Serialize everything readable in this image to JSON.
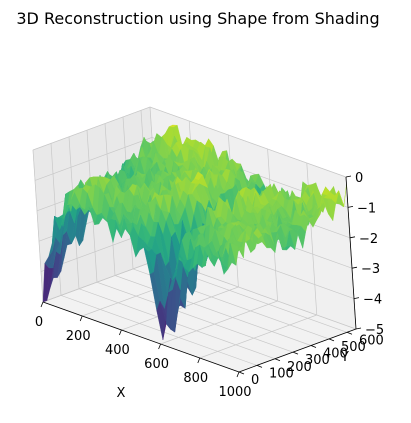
{
  "chart_data": {
    "type": "surface",
    "title": "3D Reconstruction using Shape from Shading",
    "xlabel": "X",
    "ylabel": "Y",
    "zlabel": "",
    "xlim": [
      0,
      1000
    ],
    "ylim": [
      0,
      650
    ],
    "zlim": [
      -5,
      0
    ],
    "x_ticks": [
      {
        "value": 0,
        "label": "0"
      },
      {
        "value": 200,
        "label": "200"
      },
      {
        "value": 400,
        "label": "400"
      },
      {
        "value": 600,
        "label": "600"
      },
      {
        "value": 800,
        "label": "800"
      },
      {
        "value": 1000,
        "label": "1000"
      }
    ],
    "y_ticks": [
      {
        "value": 0,
        "label": "0"
      },
      {
        "value": 100,
        "label": "100"
      },
      {
        "value": 200,
        "label": "200"
      },
      {
        "value": 300,
        "label": "300"
      },
      {
        "value": 400,
        "label": "400"
      },
      {
        "value": 500,
        "label": "500"
      },
      {
        "value": 600,
        "label": "600"
      }
    ],
    "z_ticks": [
      {
        "value": 0,
        "label": "0"
      },
      {
        "value": -1,
        "label": "−1"
      },
      {
        "value": -2,
        "label": "−2"
      },
      {
        "value": -3,
        "label": "−3"
      },
      {
        "value": -4,
        "label": "−4"
      },
      {
        "value": -5,
        "label": "−5"
      }
    ],
    "colormap": "viridis",
    "grid": true,
    "pane_color": "#f2f2f2",
    "surface_extent": {
      "x": [
        0,
        1000
      ],
      "y": [
        0,
        650
      ]
    },
    "surface_features": {
      "plateau_z": -1.0,
      "ridge_x": 620,
      "ridge_depth_z": -3.8,
      "left_edge_depth_z": -4.5,
      "noise": 0.45
    }
  }
}
